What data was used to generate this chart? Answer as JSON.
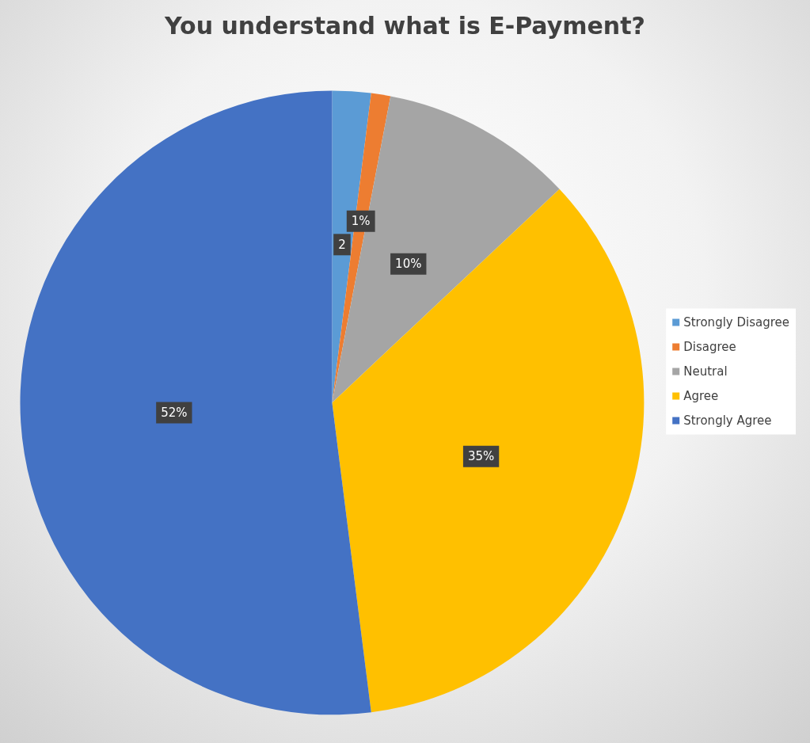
{
  "chart_data": {
    "type": "pie",
    "title": "You understand what is E-Payment?",
    "categories": [
      "Strongly Disagree",
      "Disagree",
      "Neutral",
      "Agree",
      "Strongly Agree"
    ],
    "values": [
      2,
      1,
      10,
      35,
      52
    ],
    "colors": [
      "#5b9bd5",
      "#ed7d31",
      "#a5a5a5",
      "#ffc000",
      "#4472c4"
    ],
    "value_labels": [
      "2",
      "1%",
      "10%",
      "35%",
      "52%"
    ],
    "legend": "right"
  }
}
